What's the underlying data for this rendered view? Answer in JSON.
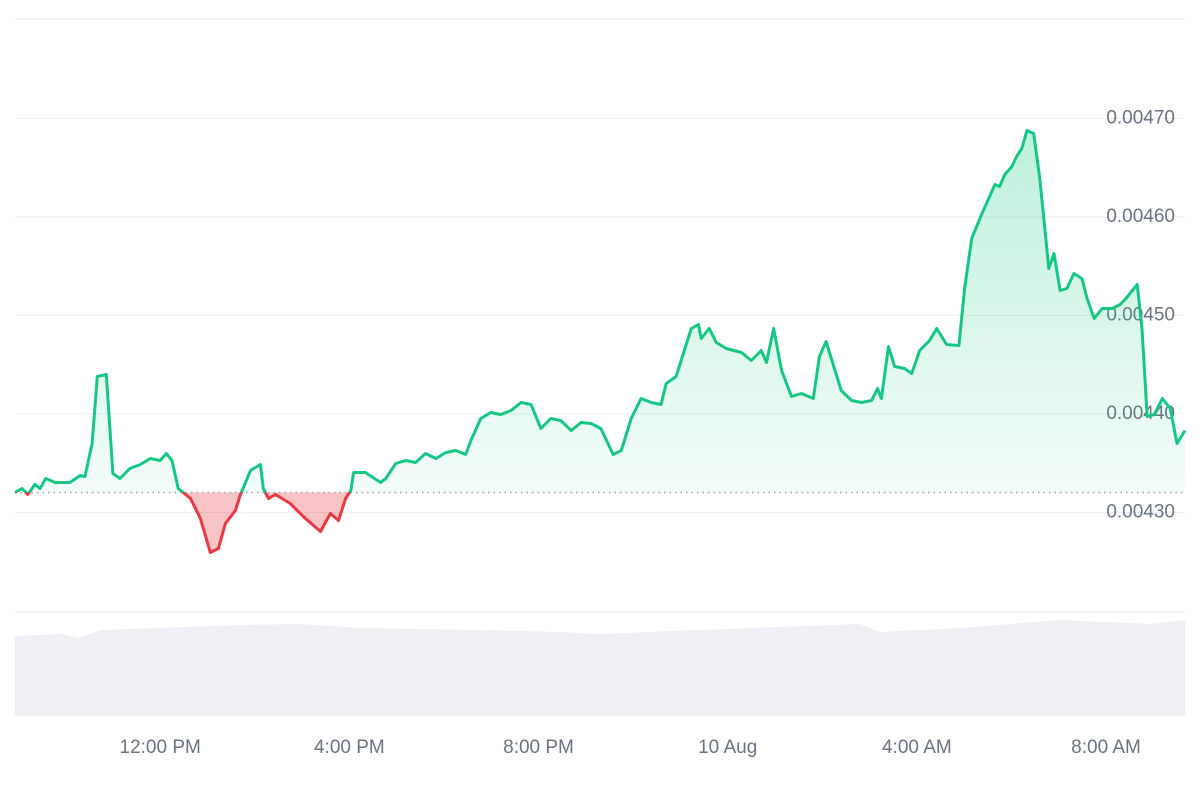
{
  "chart_data": {
    "type": "line",
    "x": [
      8.93,
      9.08,
      9.2,
      9.35,
      9.46,
      9.58,
      9.78,
      10.09,
      10.31,
      10.41,
      10.56,
      10.67,
      10.86,
      11.0,
      11.15,
      11.36,
      11.58,
      11.79,
      12.0,
      12.13,
      12.25,
      12.38,
      12.64,
      12.85,
      13.06,
      13.23,
      13.38,
      13.59,
      13.69,
      13.91,
      14.12,
      14.18,
      14.29,
      14.44,
      14.75,
      15.07,
      15.39,
      15.6,
      15.77,
      15.92,
      16.03,
      16.09,
      16.34,
      16.66,
      16.77,
      16.98,
      17.19,
      17.4,
      17.61,
      17.83,
      18.04,
      18.25,
      18.46,
      18.57,
      18.78,
      18.99,
      19.2,
      19.42,
      19.63,
      19.84,
      20.05,
      20.26,
      20.47,
      20.69,
      20.9,
      21.11,
      21.32,
      21.58,
      21.75,
      21.96,
      22.17,
      22.38,
      22.59,
      22.7,
      22.91,
      23.23,
      23.38,
      23.44,
      23.61,
      23.76,
      23.97,
      24.29,
      24.5,
      24.71,
      24.82,
      24.97,
      25.14,
      25.35,
      25.56,
      25.81,
      25.94,
      26.08,
      26.4,
      26.62,
      26.83,
      27.04,
      27.17,
      27.25,
      27.4,
      27.53,
      27.74,
      27.89,
      28.06,
      28.27,
      28.42,
      28.63,
      28.89,
      29.01,
      29.16,
      29.37,
      29.52,
      29.65,
      29.75,
      29.86,
      30.01,
      30.11,
      30.22,
      30.33,
      30.47,
      30.6,
      30.79,
      30.9,
      31.03,
      31.17,
      31.32,
      31.49,
      31.6,
      31.75,
      31.92,
      32.13,
      32.3,
      32.42,
      32.66,
      32.76,
      32.87,
      33.02,
      33.19,
      33.36,
      33.5,
      33.67
    ],
    "values": [
      0.0043203,
      0.0043244,
      0.0043183,
      0.0043284,
      0.0043244,
      0.0043345,
      0.0043305,
      0.0043305,
      0.0043376,
      0.0043365,
      0.00437,
      0.0044381,
      0.0044401,
      0.0043396,
      0.0043345,
      0.0043447,
      0.0043487,
      0.0043548,
      0.0043528,
      0.0043599,
      0.0043528,
      0.0043244,
      0.0043142,
      0.0042939,
      0.0042594,
      0.0042635,
      0.0042888,
      0.004302,
      0.0043173,
      0.0043426,
      0.0043487,
      0.0043244,
      0.0043142,
      0.0043183,
      0.0043091,
      0.0042939,
      0.0042807,
      0.004299,
      0.0042919,
      0.0043142,
      0.0043223,
      0.0043406,
      0.0043406,
      0.0043305,
      0.0043345,
      0.0043497,
      0.0043528,
      0.0043508,
      0.0043599,
      0.0043548,
      0.0043609,
      0.0043629,
      0.0043589,
      0.0043731,
      0.0043954,
      0.0044015,
      0.0043995,
      0.0044036,
      0.0044117,
      0.0044096,
      0.0043853,
      0.0043954,
      0.0043934,
      0.0043832,
      0.0043914,
      0.0043904,
      0.0043853,
      0.0043589,
      0.0043629,
      0.0043954,
      0.0044157,
      0.0044117,
      0.0044096,
      0.004431,
      0.0044381,
      0.0044868,
      0.0044909,
      0.0044766,
      0.0044868,
      0.0044726,
      0.0044665,
      0.0044624,
      0.0044543,
      0.0044645,
      0.0044523,
      0.0044868,
      0.0044442,
      0.0044178,
      0.0044208,
      0.0044157,
      0.0044584,
      0.0044736,
      0.0044239,
      0.0044137,
      0.0044117,
      0.0044137,
      0.0044259,
      0.0044157,
      0.0044685,
      0.0044482,
      0.0044462,
      0.0044411,
      0.0044645,
      0.0044746,
      0.0044868,
      0.0044706,
      0.0044695,
      0.0045274,
      0.0045782,
      0.0046025,
      0.0046188,
      0.004633,
      0.004631,
      0.0046431,
      0.0046513,
      0.0046614,
      0.0046695,
      0.0046878,
      0.0046848,
      0.0046391,
      0.0045477,
      0.0045629,
      0.0045254,
      0.0045274,
      0.0045426,
      0.0045376,
      0.0045173,
      0.004497,
      0.0045071,
      0.0045071,
      0.0045112,
      0.0045173,
      0.0045315,
      0.0044868,
      0.0043975,
      0.0043995,
      0.0044157,
      0.0044056,
      0.00437,
      0.0043832
    ],
    "color": "#16c784",
    "below_color": "#ea3943",
    "xlim": [
      8.93,
      33.67
    ],
    "xticks": [
      {
        "value": 12,
        "label": "12:00 PM"
      },
      {
        "value": 16,
        "label": "4:00 PM"
      },
      {
        "value": 20,
        "label": "8:00 PM"
      },
      {
        "value": 24,
        "label": "10 Aug"
      },
      {
        "value": 28,
        "label": "4:00 AM"
      },
      {
        "value": 32,
        "label": "8:00 AM"
      }
    ],
    "ylim": [
      0.0042,
      0.0048
    ],
    "yticks": [
      {
        "value": 0.0043,
        "label": "0.00430"
      },
      {
        "value": 0.0044,
        "label": "0.00440"
      },
      {
        "value": 0.0045,
        "label": "0.00450"
      },
      {
        "value": 0.0046,
        "label": "0.00460"
      },
      {
        "value": 0.0047,
        "label": "0.00470"
      }
    ],
    "grid": true
  }
}
